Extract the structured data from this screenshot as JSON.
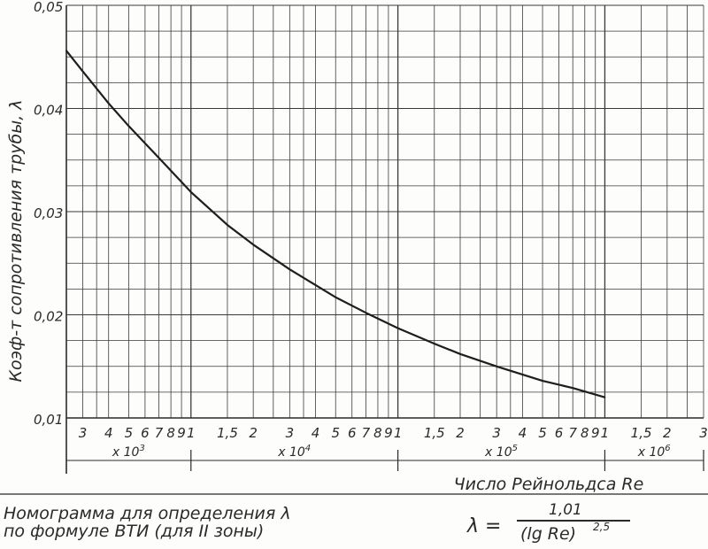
{
  "chart_data": {
    "type": "line",
    "title": "",
    "ylabel": "Коэф-т сопротивления трубы, λ",
    "xlabel": "Число Рейнольдса Re",
    "x_scale": "log",
    "xlim": [
      2500,
      3000000
    ],
    "ylim": [
      0.01,
      0.05
    ],
    "y_ticks": [
      "0,01",
      "0,02",
      "0,03",
      "0,04",
      "0,05"
    ],
    "x_tick_labels": [
      {
        "x": 3000,
        "label": "3"
      },
      {
        "x": 4000,
        "label": "4"
      },
      {
        "x": 5000,
        "label": "5"
      },
      {
        "x": 6000,
        "label": "6"
      },
      {
        "x": 7000,
        "label": "7"
      },
      {
        "x": 8000,
        "label": "8"
      },
      {
        "x": 9000,
        "label": "9"
      },
      {
        "x": 10000,
        "label": "1"
      },
      {
        "x": 15000,
        "label": "1,5"
      },
      {
        "x": 20000,
        "label": "2"
      },
      {
        "x": 30000,
        "label": "3"
      },
      {
        "x": 40000,
        "label": "4"
      },
      {
        "x": 50000,
        "label": "5"
      },
      {
        "x": 60000,
        "label": "6"
      },
      {
        "x": 70000,
        "label": "7"
      },
      {
        "x": 80000,
        "label": "8"
      },
      {
        "x": 90000,
        "label": "9"
      },
      {
        "x": 100000,
        "label": "1"
      },
      {
        "x": 150000,
        "label": "1,5"
      },
      {
        "x": 200000,
        "label": "2"
      },
      {
        "x": 300000,
        "label": "3"
      },
      {
        "x": 400000,
        "label": "4"
      },
      {
        "x": 500000,
        "label": "5"
      },
      {
        "x": 600000,
        "label": "6"
      },
      {
        "x": 700000,
        "label": "7"
      },
      {
        "x": 800000,
        "label": "8"
      },
      {
        "x": 900000,
        "label": "9"
      },
      {
        "x": 1000000,
        "label": "1"
      },
      {
        "x": 1500000,
        "label": "1,5"
      },
      {
        "x": 2000000,
        "label": "2"
      },
      {
        "x": 3000000,
        "label": "3"
      }
    ],
    "decade_labels": [
      {
        "label": "x 10",
        "exp": "3",
        "x_from": 2500,
        "x_to": 10000
      },
      {
        "label": "x 10",
        "exp": "4",
        "x_from": 10000,
        "x_to": 100000
      },
      {
        "label": "x 10",
        "exp": "5",
        "x_from": 100000,
        "x_to": 1000000
      },
      {
        "label": "x 10",
        "exp": "6",
        "x_from": 1000000,
        "x_to": 3000000
      }
    ],
    "series": [
      {
        "formula": "λ = 1,01 / (lg Re)^2,5",
        "x": [
          2500,
          3000,
          4000,
          5000,
          7000,
          10000,
          15000,
          20000,
          30000,
          50000,
          70000,
          100000,
          150000,
          200000,
          300000,
          500000,
          700000,
          1000000
        ],
        "y": [
          0.0456,
          0.0436,
          0.0405,
          0.0383,
          0.0352,
          0.0319,
          0.0287,
          0.0268,
          0.0244,
          0.0217,
          0.0202,
          0.0187,
          0.0172,
          0.0162,
          0.015,
          0.0136,
          0.0129,
          0.012
        ]
      }
    ],
    "grid": true
  },
  "axis_title": "Число Рейнольдса Re",
  "caption": {
    "line1": "Номограмма для определения λ",
    "line2": "по формуле ВТИ   (для II зоны)"
  },
  "formula": {
    "lhs": "λ =",
    "numerator": "1,01",
    "denominator": "(lg Re)",
    "exponent": "2,5"
  }
}
